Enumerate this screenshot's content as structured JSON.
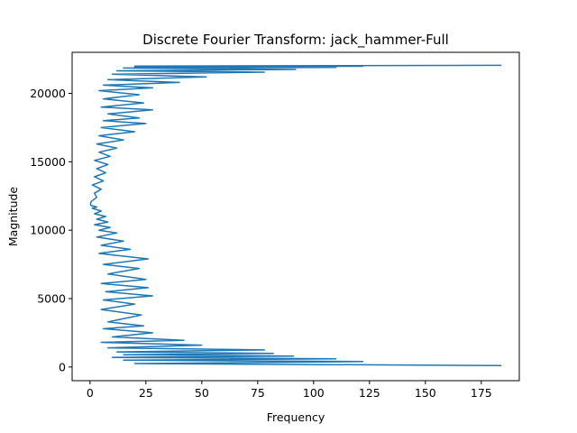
{
  "chart_data": {
    "type": "line",
    "title": "Discrete Fourier Transform: jack_hammer-Full",
    "xlabel": "Frequency",
    "ylabel": "Magnitude",
    "xlim": [
      -8,
      192
    ],
    "ylim": [
      -1000,
      23000
    ],
    "xticks": [
      0,
      25,
      50,
      75,
      100,
      125,
      150,
      175
    ],
    "yticks": [
      0,
      5000,
      10000,
      15000,
      20000
    ],
    "grid": false,
    "legend": "none",
    "series_color": "#1f77b4",
    "series": [
      {
        "x": [
          184,
          20,
          122,
          15,
          110,
          10,
          91,
          15,
          82,
          12,
          78,
          8,
          50,
          5,
          42,
          10,
          28,
          6,
          24,
          8,
          23,
          5,
          20,
          6,
          28,
          7,
          26,
          5,
          25,
          8,
          22,
          6,
          26,
          4,
          18,
          5,
          15,
          3,
          12,
          4,
          9,
          2,
          8,
          3,
          7,
          2,
          5,
          1,
          3,
          0.5,
          0.2,
          0.5,
          3,
          2,
          5,
          1,
          6,
          2,
          7,
          3,
          8,
          2,
          9,
          4,
          12,
          3,
          15,
          4,
          20,
          5,
          25,
          6,
          22,
          8,
          28,
          5,
          24,
          6,
          22,
          4,
          28,
          6,
          40,
          8,
          52,
          10,
          78,
          12,
          92,
          15,
          110,
          20,
          122,
          20,
          184
        ],
        "y": [
          100,
          250,
          400,
          500,
          600,
          700,
          800,
          900,
          1000,
          1100,
          1250,
          1400,
          1600,
          1800,
          1950,
          2200,
          2500,
          2800,
          3000,
          3300,
          3800,
          4200,
          4600,
          4900,
          5200,
          5500,
          5800,
          6100,
          6400,
          6800,
          7200,
          7500,
          7900,
          8300,
          8600,
          8900,
          9200,
          9500,
          9800,
          10000,
          10200,
          10400,
          10600,
          10800,
          11000,
          11200,
          11400,
          11600,
          11700,
          11800,
          11900,
          12100,
          12400,
          12700,
          13000,
          13300,
          13600,
          13900,
          14200,
          14500,
          14800,
          15100,
          15400,
          15700,
          16000,
          16300,
          16600,
          16900,
          17200,
          17500,
          17800,
          18000,
          18200,
          18500,
          18800,
          19000,
          19300,
          19600,
          19900,
          20200,
          20400,
          20600,
          20800,
          21000,
          21200,
          21400,
          21550,
          21650,
          21750,
          21850,
          21900,
          21950,
          21980,
          22000,
          22050
        ]
      }
    ]
  }
}
